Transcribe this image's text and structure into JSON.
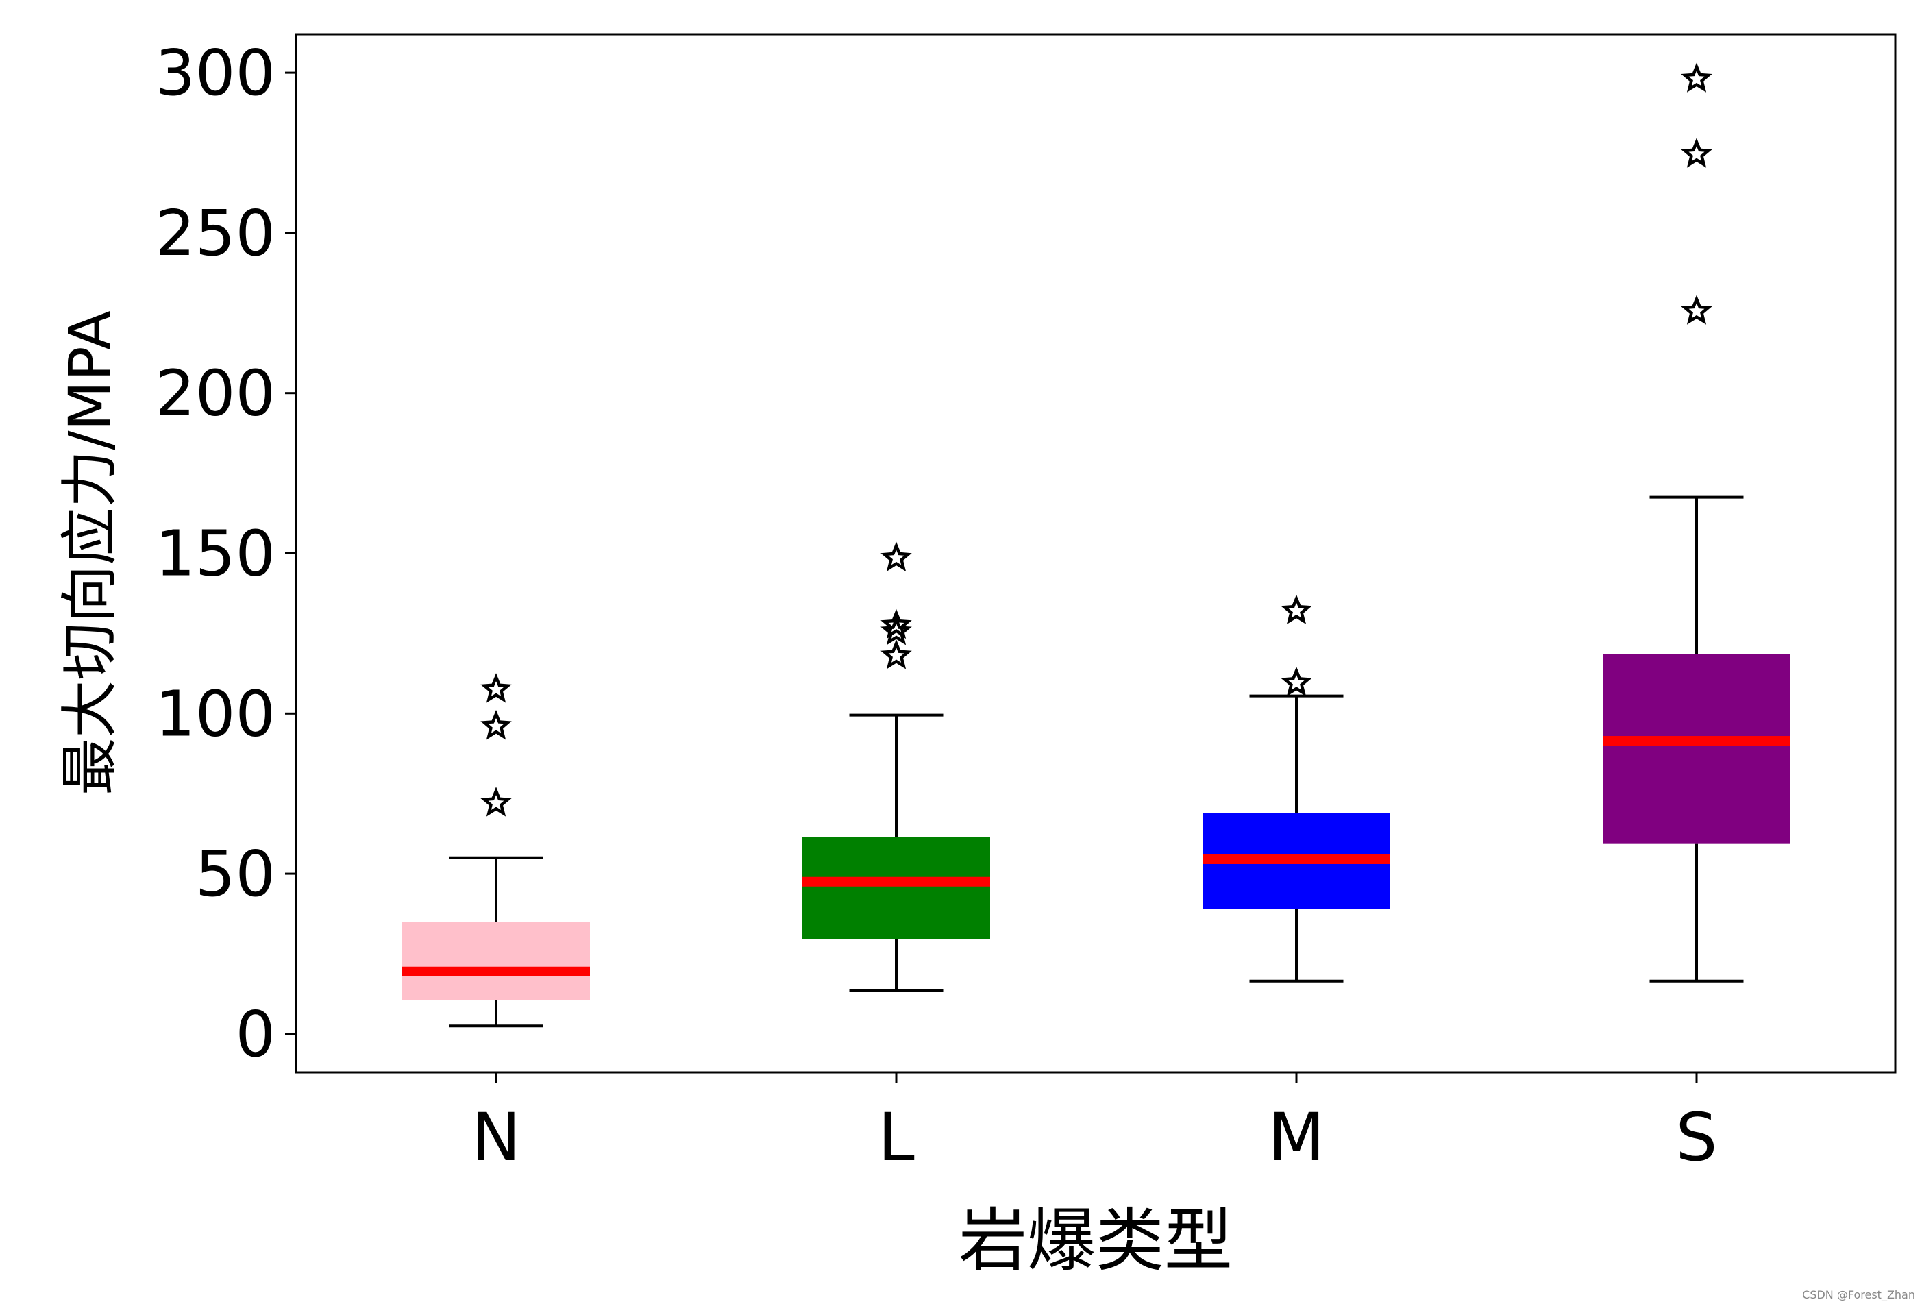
{
  "chart_data": {
    "type": "boxplot",
    "title": "",
    "xlabel": "岩爆类型",
    "ylabel": "最大切向应力/MPA",
    "ylim": [
      -12,
      312
    ],
    "yticks": [
      "0",
      "50",
      "100",
      "150",
      "200",
      "250",
      "300"
    ],
    "ytick_values": [
      0,
      50,
      100,
      150,
      200,
      250,
      300
    ],
    "grid": false,
    "legend": "none",
    "categories": [
      "N",
      "L",
      "M",
      "S"
    ],
    "boxes": [
      {
        "name": "N",
        "whisker_low": 2.5,
        "q1": 10.5,
        "median": 19.5,
        "q3": 35,
        "whisker_high": 55,
        "outliers": [
          72,
          96,
          107.5
        ],
        "color": "#FFC0CB"
      },
      {
        "name": "L",
        "whisker_low": 13.5,
        "q1": 29.5,
        "median": 47.5,
        "q3": 61.5,
        "whisker_high": 99.5,
        "outliers": [
          118,
          125.5,
          127.5,
          148.5
        ],
        "color": "#008000"
      },
      {
        "name": "M",
        "whisker_low": 16.5,
        "q1": 39,
        "median": 54.5,
        "q3": 69,
        "whisker_high": 105.5,
        "outliers": [
          109.5,
          132
        ],
        "color": "#0000FF"
      },
      {
        "name": "S",
        "whisker_low": 16.5,
        "q1": 59.5,
        "median": 91.5,
        "q3": 118.5,
        "whisker_high": 167.5,
        "outliers": [
          225.5,
          274.5,
          298
        ],
        "color": "#800080"
      }
    ],
    "median_color": "#FF0000",
    "outlier_marker": "star"
  },
  "watermark": "CSDN @Forest_Zhan"
}
